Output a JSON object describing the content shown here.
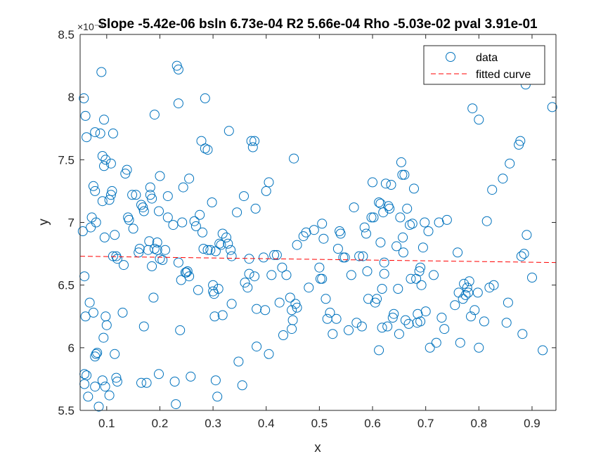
{
  "chart_data": {
    "type": "scatter",
    "title": "Slope -5.42e-06 bsln 6.73e-04 R2 5.66e-04 Rho -5.03e-02 pval 3.91e-01",
    "xlabel": "x",
    "ylabel": "y",
    "y_exponent_label": "×10⁻⁴",
    "xlim": [
      0.05,
      0.945
    ],
    "ylim": [
      5.5,
      8.5
    ],
    "x_ticks": [
      0.1,
      0.2,
      0.3,
      0.4,
      0.5,
      0.6,
      0.7,
      0.8,
      0.9
    ],
    "x_tick_labels": [
      "0.1",
      "0.2",
      "0.3",
      "0.4",
      "0.5",
      "0.6",
      "0.7",
      "0.8",
      "0.9"
    ],
    "y_ticks": [
      5.5,
      6,
      6.5,
      7,
      7.5,
      8,
      8.5
    ],
    "y_tick_labels": [
      "5.5",
      "6",
      "6.5",
      "7",
      "7.5",
      "8",
      "8.5"
    ],
    "grid": false,
    "legend_position": "top-right",
    "series": [
      {
        "name": "data",
        "style": "markers",
        "marker": "circle",
        "color": "#0072BD",
        "points": [
          [
            0.057,
            7.99
          ],
          [
            0.06,
            7.85
          ],
          [
            0.062,
            7.68
          ],
          [
            0.055,
            6.93
          ],
          [
            0.058,
            6.57
          ],
          [
            0.06,
            6.25
          ],
          [
            0.058,
            5.79
          ],
          [
            0.062,
            5.78
          ],
          [
            0.058,
            5.71
          ],
          [
            0.065,
            5.61
          ],
          [
            0.068,
            6.36
          ],
          [
            0.07,
            6.96
          ],
          [
            0.072,
            7.04
          ],
          [
            0.075,
            7.29
          ],
          [
            0.078,
            7.25
          ],
          [
            0.08,
            7.0
          ],
          [
            0.075,
            6.28
          ],
          [
            0.078,
            5.93
          ],
          [
            0.08,
            5.95
          ],
          [
            0.082,
            5.96
          ],
          [
            0.078,
            5.69
          ],
          [
            0.085,
            5.53
          ],
          [
            0.078,
            7.72
          ],
          [
            0.088,
            7.71
          ],
          [
            0.09,
            8.2
          ],
          [
            0.092,
            7.53
          ],
          [
            0.095,
            7.45
          ],
          [
            0.095,
            7.82
          ],
          [
            0.098,
            7.5
          ],
          [
            0.092,
            7.17
          ],
          [
            0.096,
            6.88
          ],
          [
            0.098,
            6.25
          ],
          [
            0.1,
            6.18
          ],
          [
            0.094,
            6.08
          ],
          [
            0.092,
            5.74
          ],
          [
            0.097,
            5.69
          ],
          [
            0.105,
            5.62
          ],
          [
            0.108,
            7.47
          ],
          [
            0.11,
            7.25
          ],
          [
            0.108,
            7.22
          ],
          [
            0.105,
            7.18
          ],
          [
            0.112,
            7.71
          ],
          [
            0.112,
            6.73
          ],
          [
            0.115,
            6.9
          ],
          [
            0.118,
            6.73
          ],
          [
            0.12,
            6.71
          ],
          [
            0.115,
            5.95
          ],
          [
            0.118,
            5.76
          ],
          [
            0.12,
            5.73
          ],
          [
            0.13,
            6.28
          ],
          [
            0.132,
            6.66
          ],
          [
            0.135,
            7.39
          ],
          [
            0.138,
            7.42
          ],
          [
            0.14,
            7.04
          ],
          [
            0.142,
            7.02
          ],
          [
            0.148,
            7.22
          ],
          [
            0.15,
            6.95
          ],
          [
            0.155,
            7.22
          ],
          [
            0.16,
            6.76
          ],
          [
            0.162,
            6.79
          ],
          [
            0.165,
            7.14
          ],
          [
            0.168,
            7.12
          ],
          [
            0.17,
            7.09
          ],
          [
            0.17,
            6.17
          ],
          [
            0.165,
            5.72
          ],
          [
            0.175,
            5.72
          ],
          [
            0.178,
            6.78
          ],
          [
            0.18,
            6.85
          ],
          [
            0.182,
            7.22
          ],
          [
            0.185,
            7.19
          ],
          [
            0.182,
            7.28
          ],
          [
            0.185,
            6.65
          ],
          [
            0.188,
            6.4
          ],
          [
            0.19,
            7.86
          ],
          [
            0.19,
            6.79
          ],
          [
            0.195,
            6.78
          ],
          [
            0.195,
            6.84
          ],
          [
            0.198,
            7.09
          ],
          [
            0.2,
            7.37
          ],
          [
            0.2,
            6.71
          ],
          [
            0.205,
            6.7
          ],
          [
            0.198,
            5.79
          ],
          [
            0.21,
            6.78
          ],
          [
            0.215,
            7.21
          ],
          [
            0.215,
            7.04
          ],
          [
            0.225,
            6.98
          ],
          [
            0.228,
            5.73
          ],
          [
            0.23,
            5.55
          ],
          [
            0.232,
            8.25
          ],
          [
            0.235,
            8.22
          ],
          [
            0.235,
            7.95
          ],
          [
            0.235,
            6.68
          ],
          [
            0.238,
            6.14
          ],
          [
            0.24,
            6.54
          ],
          [
            0.242,
            7.0
          ],
          [
            0.244,
            7.28
          ],
          [
            0.248,
            6.6
          ],
          [
            0.25,
            6.6
          ],
          [
            0.252,
            6.61
          ],
          [
            0.255,
            7.35
          ],
          [
            0.255,
            6.57
          ],
          [
            0.258,
            5.77
          ],
          [
            0.265,
            7.01
          ],
          [
            0.268,
            6.97
          ],
          [
            0.272,
            6.46
          ],
          [
            0.275,
            7.06
          ],
          [
            0.278,
            7.65
          ],
          [
            0.28,
            6.92
          ],
          [
            0.282,
            6.79
          ],
          [
            0.285,
            7.99
          ],
          [
            0.285,
            7.59
          ],
          [
            0.29,
            6.78
          ],
          [
            0.29,
            7.58
          ],
          [
            0.295,
            6.78
          ],
          [
            0.298,
            7.16
          ],
          [
            0.3,
            6.5
          ],
          [
            0.3,
            6.45
          ],
          [
            0.302,
            6.43
          ],
          [
            0.305,
            6.77
          ],
          [
            0.303,
            6.25
          ],
          [
            0.305,
            5.74
          ],
          [
            0.308,
            5.61
          ],
          [
            0.31,
            6.47
          ],
          [
            0.312,
            6.83
          ],
          [
            0.315,
            6.82
          ],
          [
            0.318,
            6.91
          ],
          [
            0.318,
            6.26
          ],
          [
            0.325,
            6.88
          ],
          [
            0.328,
            6.83
          ],
          [
            0.33,
            7.73
          ],
          [
            0.333,
            6.78
          ],
          [
            0.335,
            6.73
          ],
          [
            0.335,
            6.35
          ],
          [
            0.345,
            7.08
          ],
          [
            0.348,
            5.89
          ],
          [
            0.355,
            5.7
          ],
          [
            0.358,
            7.21
          ],
          [
            0.36,
            6.52
          ],
          [
            0.365,
            6.48
          ],
          [
            0.368,
            6.71
          ],
          [
            0.368,
            6.59
          ],
          [
            0.372,
            7.65
          ],
          [
            0.375,
            7.6
          ],
          [
            0.378,
            7.65
          ],
          [
            0.38,
            7.11
          ],
          [
            0.378,
            6.57
          ],
          [
            0.382,
            6.31
          ],
          [
            0.382,
            6.01
          ],
          [
            0.395,
            6.72
          ],
          [
            0.398,
            6.3
          ],
          [
            0.4,
            7.25
          ],
          [
            0.405,
            7.32
          ],
          [
            0.405,
            5.95
          ],
          [
            0.41,
            6.58
          ],
          [
            0.415,
            6.74
          ],
          [
            0.42,
            6.74
          ],
          [
            0.425,
            6.36
          ],
          [
            0.43,
            6.64
          ],
          [
            0.432,
            6.1
          ],
          [
            0.438,
            6.58
          ],
          [
            0.445,
            6.4
          ],
          [
            0.448,
            6.3
          ],
          [
            0.448,
            6.15
          ],
          [
            0.45,
            6.22
          ],
          [
            0.452,
            7.51
          ],
          [
            0.455,
            6.35
          ],
          [
            0.458,
            6.82
          ],
          [
            0.458,
            6.32
          ],
          [
            0.47,
            6.89
          ],
          [
            0.475,
            6.92
          ],
          [
            0.48,
            6.48
          ],
          [
            0.49,
            6.94
          ],
          [
            0.5,
            6.64
          ],
          [
            0.502,
            6.55
          ],
          [
            0.505,
            6.99
          ],
          [
            0.505,
            6.55
          ],
          [
            0.508,
            6.87
          ],
          [
            0.512,
            6.39
          ],
          [
            0.515,
            6.23
          ],
          [
            0.52,
            6.28
          ],
          [
            0.525,
            6.11
          ],
          [
            0.532,
            6.23
          ],
          [
            0.535,
            6.79
          ],
          [
            0.538,
            6.93
          ],
          [
            0.54,
            6.91
          ],
          [
            0.545,
            6.72
          ],
          [
            0.548,
            6.72
          ],
          [
            0.555,
            6.14
          ],
          [
            0.56,
            6.58
          ],
          [
            0.565,
            7.12
          ],
          [
            0.57,
            6.2
          ],
          [
            0.575,
            6.73
          ],
          [
            0.58,
            6.17
          ],
          [
            0.582,
            6.73
          ],
          [
            0.585,
            6.96
          ],
          [
            0.588,
            6.91
          ],
          [
            0.59,
            6.61
          ],
          [
            0.592,
            6.39
          ],
          [
            0.598,
            7.04
          ],
          [
            0.6,
            7.32
          ],
          [
            0.602,
            7.04
          ],
          [
            0.605,
            6.36
          ],
          [
            0.608,
            6.39
          ],
          [
            0.612,
            5.98
          ],
          [
            0.612,
            7.16
          ],
          [
            0.615,
            7.15
          ],
          [
            0.615,
            6.84
          ],
          [
            0.618,
            6.47
          ],
          [
            0.618,
            6.16
          ],
          [
            0.62,
            7.08
          ],
          [
            0.622,
            6.68
          ],
          [
            0.622,
            6.59
          ],
          [
            0.625,
            7.31
          ],
          [
            0.628,
            6.17
          ],
          [
            0.63,
            7.13
          ],
          [
            0.632,
            7.11
          ],
          [
            0.635,
            7.3
          ],
          [
            0.638,
            6.24
          ],
          [
            0.64,
            6.27
          ],
          [
            0.645,
            6.81
          ],
          [
            0.648,
            6.47
          ],
          [
            0.65,
            6.11
          ],
          [
            0.652,
            7.04
          ],
          [
            0.654,
            7.48
          ],
          [
            0.656,
            7.38
          ],
          [
            0.657,
            6.88
          ],
          [
            0.658,
            6.76
          ],
          [
            0.66,
            7.38
          ],
          [
            0.662,
            6.22
          ],
          [
            0.665,
            7.11
          ],
          [
            0.668,
            6.19
          ],
          [
            0.67,
            6.98
          ],
          [
            0.672,
            6.55
          ],
          [
            0.675,
            6.99
          ],
          [
            0.678,
            7.27
          ],
          [
            0.682,
            6.55
          ],
          [
            0.684,
            6.2
          ],
          [
            0.685,
            6.27
          ],
          [
            0.688,
            6.61
          ],
          [
            0.69,
            6.64
          ],
          [
            0.69,
            6.21
          ],
          [
            0.692,
            6.5
          ],
          [
            0.695,
            6.8
          ],
          [
            0.698,
            7.0
          ],
          [
            0.7,
            6.29
          ],
          [
            0.705,
            6.93
          ],
          [
            0.708,
            6.0
          ],
          [
            0.715,
            6.58
          ],
          [
            0.72,
            6.04
          ],
          [
            0.725,
            7.0
          ],
          [
            0.73,
            6.24
          ],
          [
            0.735,
            6.15
          ],
          [
            0.74,
            7.02
          ],
          [
            0.755,
            6.34
          ],
          [
            0.76,
            6.76
          ],
          [
            0.762,
            6.44
          ],
          [
            0.765,
            6.04
          ],
          [
            0.77,
            6.39
          ],
          [
            0.772,
            6.51
          ],
          [
            0.775,
            6.42
          ],
          [
            0.778,
            6.48
          ],
          [
            0.78,
            6.44
          ],
          [
            0.782,
            6.53
          ],
          [
            0.785,
            6.25
          ],
          [
            0.788,
            7.91
          ],
          [
            0.792,
            6.3
          ],
          [
            0.798,
            6.44
          ],
          [
            0.8,
            7.82
          ],
          [
            0.8,
            6.0
          ],
          [
            0.81,
            6.21
          ],
          [
            0.815,
            7.01
          ],
          [
            0.82,
            6.48
          ],
          [
            0.825,
            7.26
          ],
          [
            0.828,
            6.5
          ],
          [
            0.845,
            7.35
          ],
          [
            0.852,
            6.2
          ],
          [
            0.855,
            6.36
          ],
          [
            0.858,
            7.47
          ],
          [
            0.875,
            7.62
          ],
          [
            0.878,
            7.65
          ],
          [
            0.88,
            6.73
          ],
          [
            0.882,
            6.11
          ],
          [
            0.885,
            6.75
          ],
          [
            0.888,
            8.1
          ],
          [
            0.89,
            6.9
          ],
          [
            0.9,
            6.56
          ],
          [
            0.92,
            5.98
          ],
          [
            0.938,
            7.92
          ]
        ]
      },
      {
        "name": "fitted curve",
        "style": "dashed-line",
        "color": "#FF0000",
        "points": [
          [
            0.05,
            6.73
          ],
          [
            0.945,
            6.68
          ]
        ]
      }
    ]
  }
}
